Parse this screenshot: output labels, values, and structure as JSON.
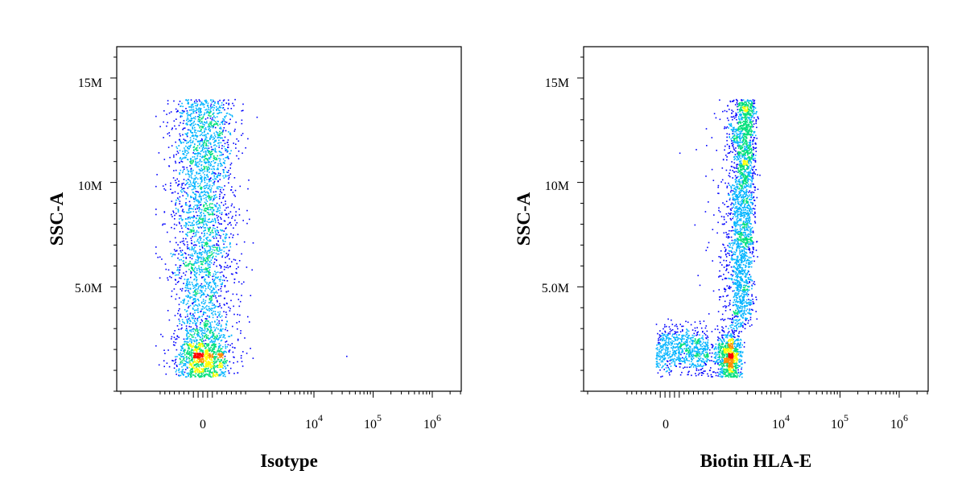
{
  "chart_data": [
    {
      "type": "scatter",
      "style": "density-colored flow cytometry dot plot",
      "xlabel": "Isotype",
      "ylabel": "SSC-A",
      "x_scale": "biexponential",
      "y_scale": "linear",
      "x_tick_labels": [
        {
          "value": 0,
          "label": "0"
        },
        {
          "value": 10000,
          "base": "10",
          "exp": "4"
        },
        {
          "value": 100000,
          "base": "10",
          "exp": "5"
        },
        {
          "value": 1000000,
          "base": "10",
          "exp": "6"
        }
      ],
      "y_tick_labels": [
        {
          "value": 5000000,
          "label": "5.0M"
        },
        {
          "value": 10000000,
          "label": "10M"
        },
        {
          "value": 15000000,
          "label": "15M"
        }
      ],
      "ylim": [
        0,
        16500000
      ],
      "density_colors": [
        "#0000ff",
        "#00b4ff",
        "#00e07a",
        "#ffff00",
        "#ff8c00",
        "#ff0000"
      ],
      "populations": [
        {
          "x_center": 0,
          "y_center": 1700000,
          "count": 1100,
          "density": "high"
        },
        {
          "x_center": 0,
          "y_range": [
            2500000,
            14000000
          ],
          "count": 2600,
          "density": "medium"
        }
      ],
      "outliers": [
        {
          "x": 35000,
          "y": 1700000
        }
      ]
    },
    {
      "type": "scatter",
      "style": "density-colored flow cytometry dot plot",
      "xlabel": "Biotin HLA-E",
      "ylabel": "SSC-A",
      "x_scale": "biexponential",
      "y_scale": "linear",
      "x_tick_labels": [
        {
          "value": 0,
          "label": "0"
        },
        {
          "value": 10000,
          "base": "10",
          "exp": "4"
        },
        {
          "value": 100000,
          "base": "10",
          "exp": "5"
        },
        {
          "value": 1000000,
          "base": "10",
          "exp": "6"
        }
      ],
      "y_tick_labels": [
        {
          "value": 5000000,
          "label": "5.0M"
        },
        {
          "value": 10000000,
          "label": "10M"
        },
        {
          "value": 15000000,
          "label": "15M"
        }
      ],
      "ylim": [
        0,
        16500000
      ],
      "density_colors": [
        "#0000ff",
        "#00b4ff",
        "#00e07a",
        "#ffff00",
        "#ff8c00",
        "#ff0000"
      ],
      "populations": [
        {
          "x_center": 1500,
          "y_center": 1700000,
          "count": 900,
          "density": "high"
        },
        {
          "x_center": 2500,
          "y_range": [
            3000000,
            14000000
          ],
          "count": 2400,
          "density": "medium-high at 9-11M"
        },
        {
          "x_range": [
            -300,
            800
          ],
          "y_center": 2000000,
          "count": 700,
          "density": "low"
        }
      ]
    }
  ]
}
